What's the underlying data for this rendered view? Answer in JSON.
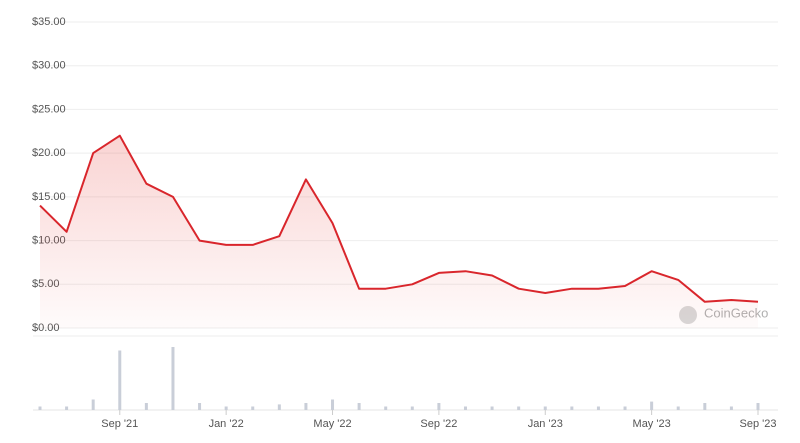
{
  "chart_data": {
    "type": "line",
    "x": [
      "2021-06",
      "2021-07",
      "2021-08",
      "2021-09",
      "2021-10",
      "2021-11",
      "2021-12",
      "2022-01",
      "2022-02",
      "2022-03",
      "2022-04",
      "2022-05",
      "2022-06",
      "2022-07",
      "2022-08",
      "2022-09",
      "2022-10",
      "2022-11",
      "2022-12",
      "2023-01",
      "2023-02",
      "2023-03",
      "2023-04",
      "2023-05",
      "2023-06",
      "2023-07",
      "2023-08",
      "2023-09"
    ],
    "series": [
      {
        "color": "#d9262c",
        "values": [
          14,
          11,
          20,
          22,
          16.5,
          15,
          10,
          9.5,
          9.5,
          10.5,
          17,
          12,
          4.5,
          4.5,
          5,
          6.3,
          6.5,
          6,
          4.5,
          4,
          4.5,
          4.5,
          4.8,
          6.5,
          5.5,
          3,
          3.2,
          3
        ]
      }
    ],
    "volume": {
      "color": "#c9ced8",
      "values": [
        5,
        5,
        15,
        85,
        10,
        90,
        10,
        5,
        5,
        8,
        10,
        15,
        10,
        5,
        5,
        10,
        5,
        5,
        5,
        5,
        5,
        5,
        5,
        12,
        5,
        10,
        5,
        10
      ]
    },
    "xlim": [
      "2021-06",
      "2023-09"
    ],
    "xticks": [
      {
        "value": "2021-09",
        "label": "Sep '21"
      },
      {
        "value": "2022-01",
        "label": "Jan '22"
      },
      {
        "value": "2022-05",
        "label": "May '22"
      },
      {
        "value": "2022-09",
        "label": "Sep '22"
      },
      {
        "value": "2023-01",
        "label": "Jan '23"
      },
      {
        "value": "2023-05",
        "label": "May '23"
      },
      {
        "value": "2023-09",
        "label": "Sep '23"
      }
    ],
    "ylim": [
      0,
      35
    ],
    "yticks": [
      {
        "value": 0,
        "label": "$0.00"
      },
      {
        "value": 5,
        "label": "$5.00"
      },
      {
        "value": 10,
        "label": "$10.00"
      },
      {
        "value": 15,
        "label": "$15.00"
      },
      {
        "value": 20,
        "label": "$20.00"
      },
      {
        "value": 25,
        "label": "$25.00"
      },
      {
        "value": 30,
        "label": "$30.00"
      },
      {
        "value": 35,
        "label": "$35.00"
      }
    ],
    "grid": true,
    "watermark": "CoinGecko"
  }
}
